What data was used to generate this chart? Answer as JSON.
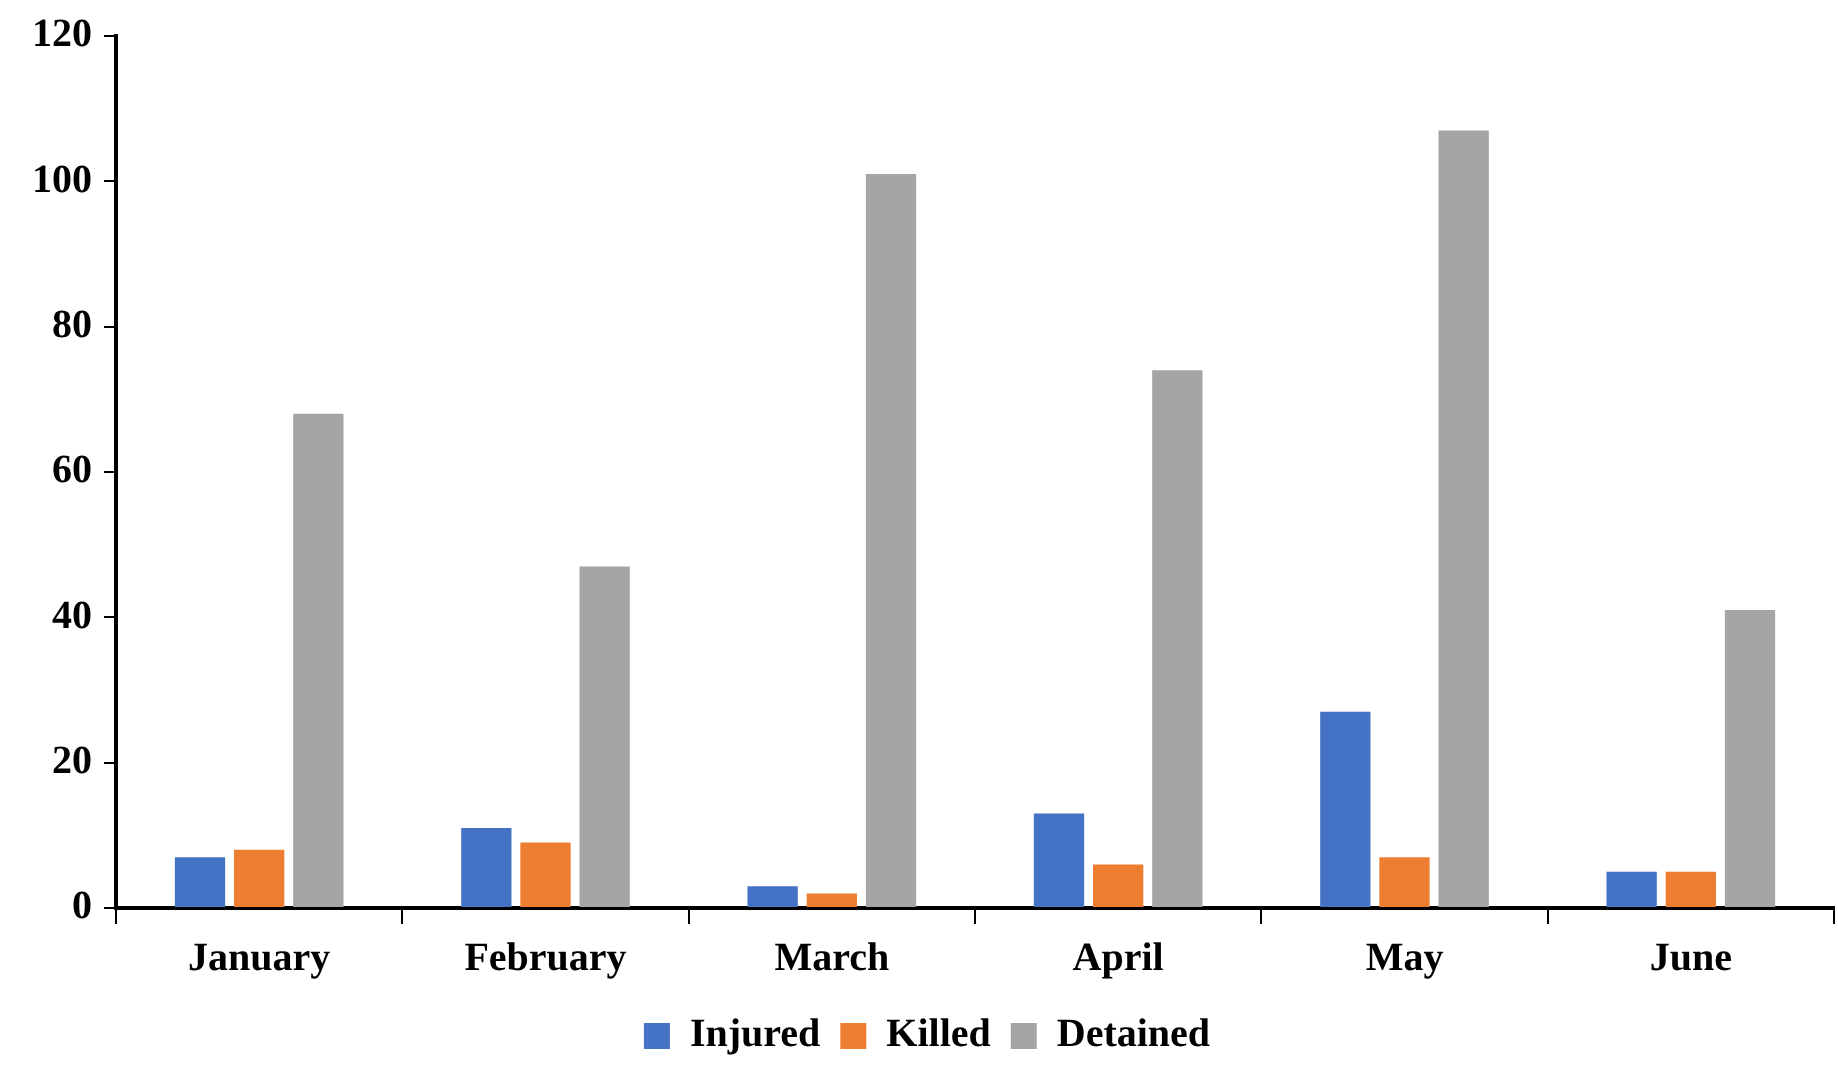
{
  "chart_data": {
    "type": "bar",
    "categories": [
      "January",
      "February",
      "March",
      "April",
      "May",
      "June"
    ],
    "series": [
      {
        "name": "Injured",
        "color": "#4472c4",
        "values": [
          7,
          11,
          3,
          13,
          27,
          5
        ]
      },
      {
        "name": "Killed",
        "color": "#ed7d31",
        "values": [
          8,
          9,
          2,
          6,
          7,
          5
        ]
      },
      {
        "name": "Detained",
        "color": "#a5a5a5",
        "values": [
          68,
          47,
          101,
          74,
          107,
          41
        ]
      }
    ],
    "ylim": [
      0,
      120
    ],
    "yticks": [
      0,
      20,
      40,
      60,
      80,
      100,
      120
    ],
    "grid": false,
    "legend": "bottom"
  }
}
